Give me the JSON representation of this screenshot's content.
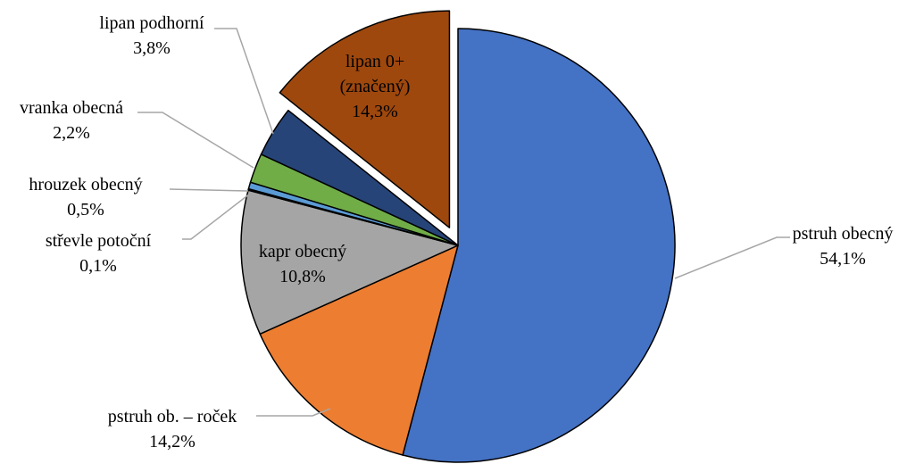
{
  "chart_data": {
    "type": "pie",
    "title": "",
    "slices": [
      {
        "label": "pstruh obecný",
        "value_label": "54,1%",
        "value": 54.1,
        "color": "#4472C4",
        "exploded": false
      },
      {
        "label": "pstruh ob. – roček",
        "value_label": "14,2%",
        "value": 14.2,
        "color": "#ED7D31",
        "exploded": false
      },
      {
        "label": "kapr obecný",
        "value_label": "10,8%",
        "value": 10.8,
        "color": "#A5A5A5",
        "exploded": false
      },
      {
        "label": "střevle potoční",
        "value_label": "0,1%",
        "value": 0.1,
        "color": "#264478",
        "exploded": false
      },
      {
        "label": "hrouzek obecný",
        "value_label": "0,5%",
        "value": 0.5,
        "color": "#5B9BD5",
        "exploded": false
      },
      {
        "label": "vranka obecná",
        "value_label": "2,2%",
        "value": 2.2,
        "color": "#70AD47",
        "exploded": false
      },
      {
        "label": "lipan podhorní",
        "value_label": "3,8%",
        "value": 3.8,
        "color": "#264478",
        "exploded": false
      },
      {
        "label_lines": [
          "lipan 0+",
          "(značený)"
        ],
        "value_label": "14,3%",
        "value": 14.3,
        "color": "#9E480E",
        "exploded": true
      }
    ],
    "legend": "none",
    "data_labels": "category name and percentage, leader lines"
  }
}
